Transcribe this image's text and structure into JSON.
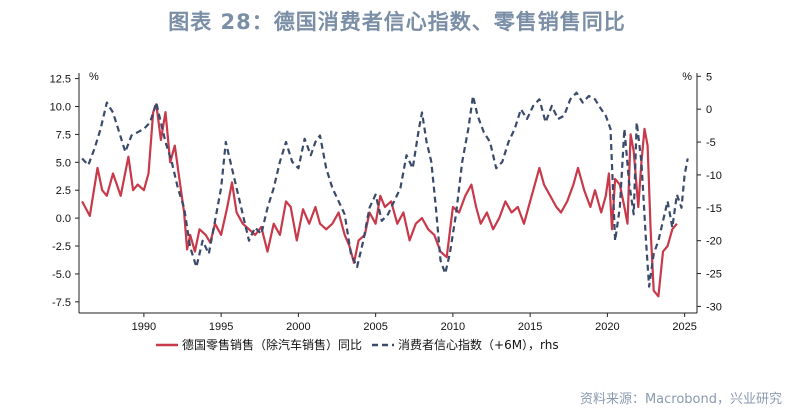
{
  "title": "图表 28：德国消费者信心指数、零售销售同比",
  "source": "资料来源：Macrobond，兴业研究",
  "chart_data": {
    "type": "line",
    "x_range": [
      1985.8,
      2025.8
    ],
    "x_ticks": [
      1990,
      1995,
      2000,
      2005,
      2010,
      2015,
      2020,
      2025
    ],
    "left_axis": {
      "unit": "%",
      "ylim": [
        -8.5,
        13.0
      ],
      "ticks": [
        -7.5,
        -5.0,
        -2.5,
        0.0,
        2.5,
        5.0,
        7.5,
        10.0,
        12.5
      ],
      "tick_labels": [
        "-7.5",
        "-5.0",
        "-2.5",
        "0.0",
        "2.5",
        "5.0",
        "7.5",
        "10.0",
        "12.5"
      ]
    },
    "right_axis": {
      "unit": "%",
      "ylim": [
        -31.0,
        5.5
      ],
      "ticks": [
        -30,
        -25,
        -20,
        -15,
        -10,
        -5,
        0,
        5
      ],
      "tick_labels": [
        "-30",
        "-25",
        "-20",
        "-15",
        "-10",
        "-5",
        "0",
        "5"
      ]
    },
    "series": [
      {
        "name": "德国零售销售（除汽车销售）同比",
        "axis": "left",
        "color": "#c8394a",
        "style": "solid",
        "points": [
          [
            1986.0,
            1.5
          ],
          [
            1986.5,
            0.2
          ],
          [
            1987.0,
            4.5
          ],
          [
            1987.3,
            2.5
          ],
          [
            1987.6,
            2.0
          ],
          [
            1988.0,
            4.0
          ],
          [
            1988.5,
            2.0
          ],
          [
            1989.0,
            5.5
          ],
          [
            1989.3,
            2.5
          ],
          [
            1989.6,
            3.0
          ],
          [
            1990.0,
            2.5
          ],
          [
            1990.3,
            4.0
          ],
          [
            1990.6,
            9.5
          ],
          [
            1990.8,
            10.2
          ],
          [
            1991.1,
            7.0
          ],
          [
            1991.4,
            9.5
          ],
          [
            1991.7,
            5.0
          ],
          [
            1992.0,
            6.5
          ],
          [
            1992.3,
            3.5
          ],
          [
            1992.6,
            0.5
          ],
          [
            1992.8,
            -2.8
          ],
          [
            1993.0,
            -1.5
          ],
          [
            1993.3,
            -3.0
          ],
          [
            1993.6,
            -1.0
          ],
          [
            1994.0,
            -1.5
          ],
          [
            1994.3,
            -2.2
          ],
          [
            1994.6,
            -0.5
          ],
          [
            1995.0,
            -1.5
          ],
          [
            1995.4,
            1.0
          ],
          [
            1995.7,
            3.2
          ],
          [
            1996.0,
            0.5
          ],
          [
            1996.4,
            -0.5
          ],
          [
            1996.8,
            -1.0
          ],
          [
            1997.2,
            -1.5
          ],
          [
            1997.6,
            -0.8
          ],
          [
            1998.0,
            -3.0
          ],
          [
            1998.4,
            -0.5
          ],
          [
            1998.8,
            -1.5
          ],
          [
            1999.2,
            1.5
          ],
          [
            1999.5,
            1.0
          ],
          [
            1999.9,
            -2.0
          ],
          [
            2000.3,
            0.8
          ],
          [
            2000.7,
            -0.5
          ],
          [
            2001.1,
            1.0
          ],
          [
            2001.4,
            -0.5
          ],
          [
            2001.8,
            -1.0
          ],
          [
            2002.2,
            -0.5
          ],
          [
            2002.6,
            0.5
          ],
          [
            2003.0,
            -1.5
          ],
          [
            2003.3,
            -2.5
          ],
          [
            2003.6,
            -4.0
          ],
          [
            2003.9,
            -2.0
          ],
          [
            2004.3,
            -1.5
          ],
          [
            2004.6,
            0.5
          ],
          [
            2005.0,
            -0.5
          ],
          [
            2005.3,
            2.0
          ],
          [
            2005.6,
            1.0
          ],
          [
            2006.0,
            1.5
          ],
          [
            2006.4,
            -0.5
          ],
          [
            2006.8,
            0.5
          ],
          [
            2007.2,
            -2.0
          ],
          [
            2007.6,
            -0.5
          ],
          [
            2008.0,
            0.0
          ],
          [
            2008.4,
            -1.0
          ],
          [
            2008.8,
            -1.5
          ],
          [
            2009.2,
            -3.0
          ],
          [
            2009.6,
            -3.5
          ],
          [
            2010.0,
            1.0
          ],
          [
            2010.4,
            0.5
          ],
          [
            2010.8,
            2.0
          ],
          [
            2011.2,
            3.0
          ],
          [
            2011.5,
            1.0
          ],
          [
            2011.8,
            -0.5
          ],
          [
            2012.2,
            0.5
          ],
          [
            2012.6,
            -1.0
          ],
          [
            2013.0,
            0.0
          ],
          [
            2013.4,
            1.5
          ],
          [
            2013.8,
            0.5
          ],
          [
            2014.2,
            1.0
          ],
          [
            2014.6,
            -0.5
          ],
          [
            2015.0,
            1.5
          ],
          [
            2015.3,
            3.0
          ],
          [
            2015.6,
            4.5
          ],
          [
            2015.9,
            3.0
          ],
          [
            2016.3,
            2.0
          ],
          [
            2016.7,
            1.0
          ],
          [
            2017.0,
            0.5
          ],
          [
            2017.4,
            1.5
          ],
          [
            2017.8,
            3.0
          ],
          [
            2018.1,
            4.5
          ],
          [
            2018.5,
            2.5
          ],
          [
            2018.9,
            1.0
          ],
          [
            2019.2,
            2.5
          ],
          [
            2019.6,
            0.5
          ],
          [
            2019.9,
            2.0
          ],
          [
            2020.1,
            4.0
          ],
          [
            2020.3,
            -1.0
          ],
          [
            2020.5,
            3.5
          ],
          [
            2020.8,
            3.0
          ],
          [
            2021.1,
            1.0
          ],
          [
            2021.3,
            -0.5
          ],
          [
            2021.5,
            7.5
          ],
          [
            2021.7,
            6.0
          ],
          [
            2022.0,
            1.0
          ],
          [
            2022.2,
            5.0
          ],
          [
            2022.4,
            8.0
          ],
          [
            2022.6,
            6.5
          ],
          [
            2022.8,
            -1.0
          ],
          [
            2023.0,
            -6.5
          ],
          [
            2023.3,
            -7.0
          ],
          [
            2023.6,
            -3.0
          ],
          [
            2023.9,
            -2.5
          ],
          [
            2024.2,
            -1.0
          ],
          [
            2024.5,
            -0.5
          ]
        ]
      },
      {
        "name": "消费者信心指数（+6M），rhs",
        "axis": "right",
        "color": "#3a4a6b",
        "style": "dashed",
        "points": [
          [
            1986.0,
            -7.5
          ],
          [
            1986.4,
            -8.5
          ],
          [
            1986.8,
            -6.0
          ],
          [
            1987.2,
            -3.0
          ],
          [
            1987.6,
            1.0
          ],
          [
            1988.0,
            -0.5
          ],
          [
            1988.4,
            -3.5
          ],
          [
            1988.8,
            -6.5
          ],
          [
            1989.2,
            -4.0
          ],
          [
            1989.6,
            -3.5
          ],
          [
            1990.0,
            -3.0
          ],
          [
            1990.4,
            -2.0
          ],
          [
            1990.8,
            1.0
          ],
          [
            1991.0,
            -1.0
          ],
          [
            1991.4,
            -5.0
          ],
          [
            1991.8,
            -8.0
          ],
          [
            1992.2,
            -12.0
          ],
          [
            1992.6,
            -15.0
          ],
          [
            1993.0,
            -21.0
          ],
          [
            1993.4,
            -24.0
          ],
          [
            1993.8,
            -20.0
          ],
          [
            1994.2,
            -22.0
          ],
          [
            1994.6,
            -17.0
          ],
          [
            1995.0,
            -12.0
          ],
          [
            1995.3,
            -5.0
          ],
          [
            1995.6,
            -8.0
          ],
          [
            1996.0,
            -12.0
          ],
          [
            1996.4,
            -16.0
          ],
          [
            1996.8,
            -20.0
          ],
          [
            1997.2,
            -18.0
          ],
          [
            1997.6,
            -19.0
          ],
          [
            1998.0,
            -15.0
          ],
          [
            1998.4,
            -12.0
          ],
          [
            1998.8,
            -8.0
          ],
          [
            1999.2,
            -5.0
          ],
          [
            1999.6,
            -8.0
          ],
          [
            2000.0,
            -9.0
          ],
          [
            2000.4,
            -4.5
          ],
          [
            2000.8,
            -7.0
          ],
          [
            2001.1,
            -5.0
          ],
          [
            2001.4,
            -4.0
          ],
          [
            2001.8,
            -9.0
          ],
          [
            2002.2,
            -12.0
          ],
          [
            2002.6,
            -14.0
          ],
          [
            2003.0,
            -16.0
          ],
          [
            2003.4,
            -22.0
          ],
          [
            2003.8,
            -24.0
          ],
          [
            2004.2,
            -20.0
          ],
          [
            2004.6,
            -15.0
          ],
          [
            2005.0,
            -13.0
          ],
          [
            2005.4,
            -17.0
          ],
          [
            2005.8,
            -16.0
          ],
          [
            2006.2,
            -14.0
          ],
          [
            2006.6,
            -12.0
          ],
          [
            2007.0,
            -7.0
          ],
          [
            2007.4,
            -9.0
          ],
          [
            2007.8,
            -3.0
          ],
          [
            2008.0,
            -0.5
          ],
          [
            2008.3,
            -5.0
          ],
          [
            2008.6,
            -8.0
          ],
          [
            2008.9,
            -15.0
          ],
          [
            2009.2,
            -23.0
          ],
          [
            2009.5,
            -25.0
          ],
          [
            2009.8,
            -22.0
          ],
          [
            2010.2,
            -16.0
          ],
          [
            2010.6,
            -8.0
          ],
          [
            2011.0,
            -3.0
          ],
          [
            2011.3,
            2.0
          ],
          [
            2011.6,
            -1.0
          ],
          [
            2012.0,
            -3.5
          ],
          [
            2012.4,
            -5.0
          ],
          [
            2012.8,
            -9.0
          ],
          [
            2013.2,
            -8.0
          ],
          [
            2013.6,
            -5.0
          ],
          [
            2014.0,
            -3.0
          ],
          [
            2014.4,
            0.0
          ],
          [
            2014.8,
            -1.5
          ],
          [
            2015.2,
            0.5
          ],
          [
            2015.6,
            1.5
          ],
          [
            2016.0,
            -2.0
          ],
          [
            2016.4,
            0.5
          ],
          [
            2016.8,
            -1.5
          ],
          [
            2017.2,
            -1.0
          ],
          [
            2017.6,
            1.5
          ],
          [
            2018.0,
            2.5
          ],
          [
            2018.4,
            1.0
          ],
          [
            2018.8,
            2.0
          ],
          [
            2019.2,
            1.5
          ],
          [
            2019.6,
            0.0
          ],
          [
            2019.9,
            -1.0
          ],
          [
            2020.2,
            -3.0
          ],
          [
            2020.5,
            -20.0
          ],
          [
            2020.8,
            -15.0
          ],
          [
            2021.1,
            -3.0
          ],
          [
            2021.4,
            -11.0
          ],
          [
            2021.7,
            -16.0
          ],
          [
            2021.9,
            -2.0
          ],
          [
            2022.2,
            -8.0
          ],
          [
            2022.5,
            -20.0
          ],
          [
            2022.7,
            -27.0
          ],
          [
            2023.0,
            -22.0
          ],
          [
            2023.3,
            -20.0
          ],
          [
            2023.6,
            -17.0
          ],
          [
            2023.9,
            -14.0
          ],
          [
            2024.2,
            -18.0
          ],
          [
            2024.5,
            -13.0
          ],
          [
            2024.8,
            -15.0
          ],
          [
            2025.0,
            -10.0
          ],
          [
            2025.2,
            -7.5
          ]
        ]
      }
    ],
    "legend": [
      {
        "label": "德国零售销售（除汽车销售）同比",
        "color": "#c8394a",
        "style": "solid"
      },
      {
        "label": "消费者信心指数（+6M），rhs",
        "color": "#3a4a6b",
        "style": "dashed"
      }
    ]
  }
}
